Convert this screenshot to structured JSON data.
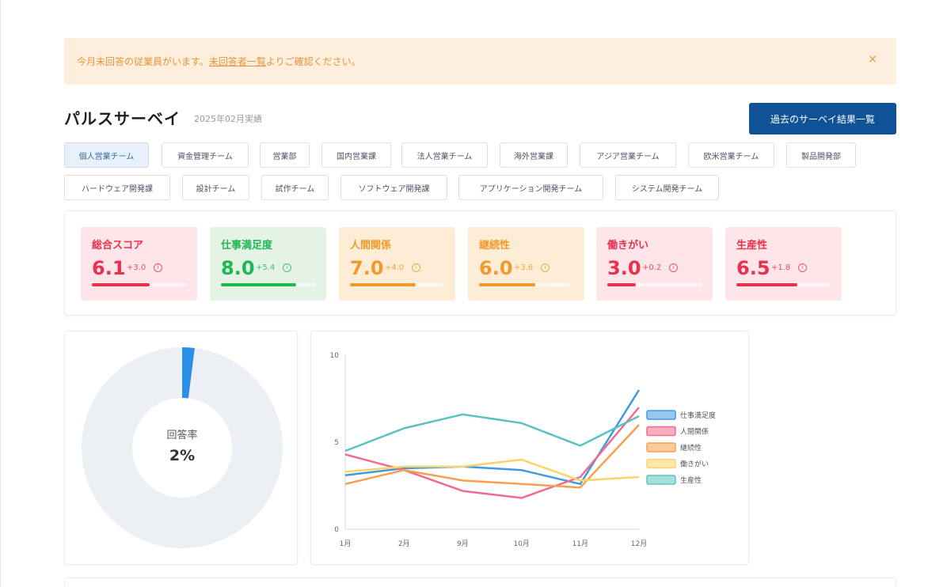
{
  "alert": {
    "text_before": "今月未回答の従業員がいます。",
    "link": "未回答者一覧",
    "text_after": "よりご確認ください。",
    "close": "×"
  },
  "header": {
    "title": "パルスサーベイ",
    "period": "2025年02月実績",
    "past_button": "過去のサーベイ結果一覧"
  },
  "teams": [
    {
      "label": "個人営業チーム",
      "active": true
    },
    {
      "label": "資金管理チーム",
      "active": false
    },
    {
      "label": "営業部",
      "active": false
    },
    {
      "label": "国内営業課",
      "active": false
    },
    {
      "label": "法人営業チーム",
      "active": false
    },
    {
      "label": "海外営業課",
      "active": false
    },
    {
      "label": "アジア営業チーム",
      "active": false
    },
    {
      "label": "欧米営業チーム",
      "active": false
    },
    {
      "label": "製品開発部",
      "active": false
    },
    {
      "label": "ハードウェア開発課",
      "active": false
    },
    {
      "label": "設計チーム",
      "active": false
    },
    {
      "label": "試作チーム",
      "active": false
    },
    {
      "label": "ソフトウェア開発課",
      "active": false
    },
    {
      "label": "アプリケーション開発チーム",
      "active": false
    },
    {
      "label": "システム開発チーム",
      "active": false
    }
  ],
  "kpis": [
    {
      "label": "総合スコア",
      "value": "6.1",
      "delta": "+3.0",
      "progress": 0.61,
      "color": "#e8304f",
      "bg": "#fde5e9"
    },
    {
      "label": "仕事満足度",
      "value": "8.0",
      "delta": "+5.4",
      "progress": 0.8,
      "color": "#1fb655",
      "bg": "#e4f3e4"
    },
    {
      "label": "人間関係",
      "value": "7.0",
      "delta": "+4.0",
      "progress": 0.7,
      "color": "#f19a2c",
      "bg": "#fdecd6"
    },
    {
      "label": "継続性",
      "value": "6.0",
      "delta": "+3.6",
      "progress": 0.6,
      "color": "#f19a2c",
      "bg": "#fdecd6"
    },
    {
      "label": "働きがい",
      "value": "3.0",
      "delta": "+0.2",
      "progress": 0.3,
      "color": "#e8304f",
      "bg": "#fde5e9"
    },
    {
      "label": "生産性",
      "value": "6.5",
      "delta": "+1.8",
      "progress": 0.65,
      "color": "#e8304f",
      "bg": "#fde5e9"
    }
  ],
  "info_glyph": "i",
  "response_rate": {
    "label": "回答率",
    "value_text": "2%",
    "fraction": 0.02,
    "color": "#2a8fe6",
    "track": "#eceff3"
  },
  "chart_data": {
    "type": "line",
    "categories": [
      "1月",
      "2月",
      "9月",
      "10月",
      "11月",
      "12月"
    ],
    "ylim": [
      0,
      10
    ],
    "yticks": [
      0,
      5,
      10
    ],
    "legend_position": "right",
    "series": [
      {
        "name": "仕事満足度",
        "color": "#3f9be0",
        "values": [
          3.1,
          3.5,
          3.6,
          3.4,
          2.6,
          8.0
        ]
      },
      {
        "name": "人間関係",
        "color": "#f26a8d",
        "values": [
          4.3,
          3.4,
          2.2,
          1.8,
          3.0,
          7.0
        ]
      },
      {
        "name": "継続性",
        "color": "#f6a04d",
        "values": [
          2.6,
          3.4,
          2.8,
          2.6,
          2.4,
          6.0
        ]
      },
      {
        "name": "働きがい",
        "color": "#fbd36a",
        "values": [
          3.3,
          3.6,
          3.6,
          4.0,
          2.8,
          3.0
        ]
      },
      {
        "name": "生産性",
        "color": "#5cc2c0",
        "values": [
          4.5,
          5.8,
          6.6,
          6.1,
          4.8,
          6.5
        ]
      }
    ]
  }
}
